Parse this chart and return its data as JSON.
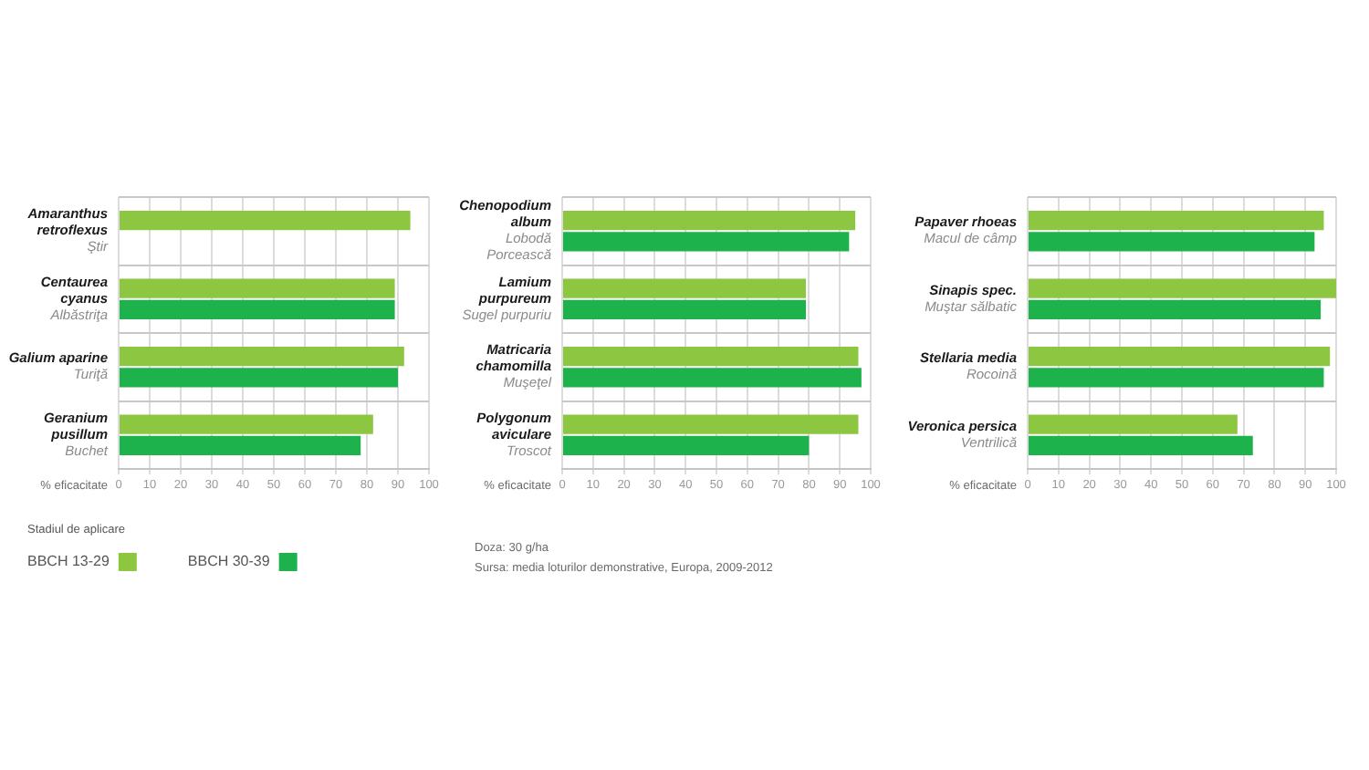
{
  "chart_data": [
    {
      "type": "bar",
      "orientation": "horizontal",
      "categories": [
        "Amaranthus retroflexus\nŞtir",
        "Centaurea cyanus\nAlbăstriţa",
        "Galium aparine\nTuriţă",
        "Geranium pusillum\nBuchet"
      ],
      "series": [
        {
          "name": "BBCH 13-29",
          "color": "#8dc641",
          "values": [
            94,
            89,
            92,
            82
          ]
        },
        {
          "name": "BBCH 30-39",
          "color": "#1eb24d",
          "values": [
            null,
            89,
            90,
            78
          ]
        }
      ],
      "xlabel": "% eficacitate",
      "xlim": [
        0,
        100
      ],
      "xticks": [
        0,
        10,
        20,
        30,
        40,
        50,
        60,
        70,
        80,
        90,
        100
      ],
      "grid": true,
      "legend": "bottom",
      "legend_title": "Stadiul de aplicare"
    },
    {
      "type": "bar",
      "orientation": "horizontal",
      "categories": [
        "Chenopodium album\nLobodă Porcească",
        "Lamium purpureum\nSugel purpuriu",
        "Matricaria chamomilla\nMuşeţel",
        "Polygonum aviculare\nTroscot"
      ],
      "series": [
        {
          "color": "#8dc641",
          "values": [
            95,
            79,
            96,
            96
          ]
        },
        {
          "color": "#1eb24d",
          "values": [
            93,
            79,
            97,
            80
          ]
        }
      ],
      "xlabel": "% eficacitate",
      "xlim": [
        0,
        100
      ],
      "xticks": [
        0,
        10,
        20,
        30,
        40,
        50,
        60,
        70,
        80,
        90,
        100
      ],
      "grid": true,
      "annotations": [
        "Doza: 30 g/ha",
        "Sursa: media loturilor demonstrative, Europa, 2009-2012"
      ]
    },
    {
      "type": "bar",
      "orientation": "horizontal",
      "categories": [
        "Papaver rhoeas\nMacul de câmp",
        "Sinapis spec.\nMuştar sălbatic",
        "Stellaria media\nRocoină",
        "Veronica persica\nVentrilică"
      ],
      "series": [
        {
          "color": "#8dc641",
          "values": [
            96,
            100,
            98,
            68
          ]
        },
        {
          "color": "#1eb24d",
          "values": [
            93,
            95,
            96,
            73
          ]
        }
      ],
      "xlabel": "% eficacitate",
      "xlim": [
        0,
        100
      ],
      "xticks": [
        0,
        10,
        20,
        30,
        40,
        50,
        60,
        70,
        80,
        90,
        100
      ],
      "grid": true
    }
  ]
}
